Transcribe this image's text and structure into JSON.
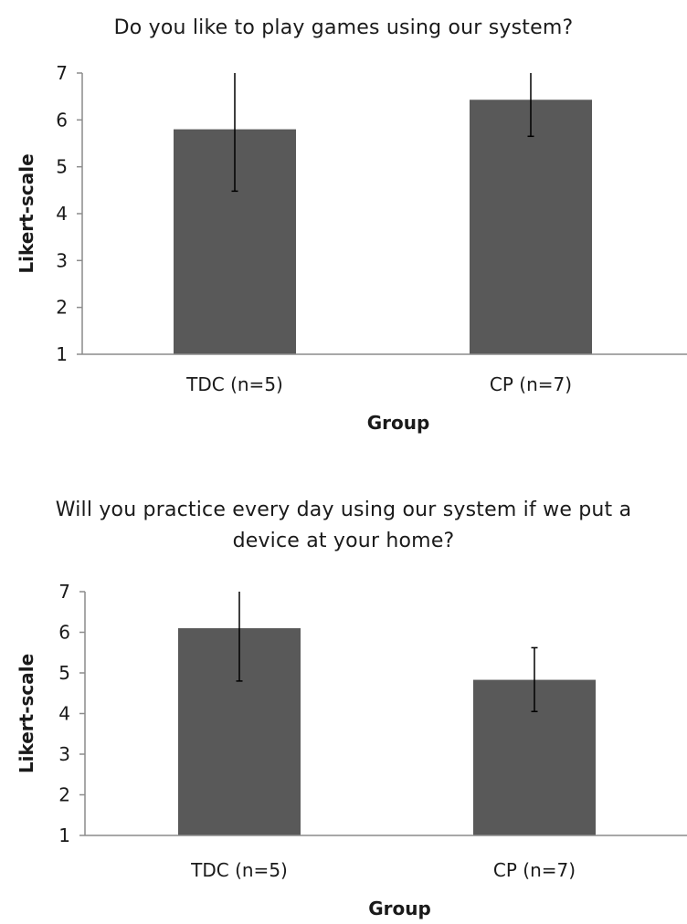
{
  "chart_data": [
    {
      "type": "bar",
      "title": "Do you like to play games using our system?",
      "xlabel": "Group",
      "ylabel": "Likert-scale",
      "categories": [
        "TDC (n=5)",
        "CP (n=7)"
      ],
      "values": [
        5.8,
        6.43
      ],
      "error_low": [
        4.48,
        5.65
      ],
      "error_high": [
        7.0,
        7.0
      ],
      "ylim": [
        1,
        7
      ],
      "yticks": [
        1,
        2,
        3,
        4,
        5,
        6,
        7
      ],
      "grid": false,
      "bar_color": "#595959"
    },
    {
      "type": "bar",
      "title": "Will you practice every day using our system if we put a device at your home?",
      "xlabel": "Group",
      "ylabel": "Likert-scale",
      "categories": [
        "TDC (n=5)",
        "CP (n=7)"
      ],
      "values": [
        6.1,
        4.83
      ],
      "error_low": [
        4.8,
        4.05
      ],
      "error_high": [
        7.0,
        5.62
      ],
      "ylim": [
        1,
        7
      ],
      "yticks": [
        1,
        2,
        3,
        4,
        5,
        6,
        7
      ],
      "grid": false,
      "bar_color": "#595959"
    }
  ]
}
